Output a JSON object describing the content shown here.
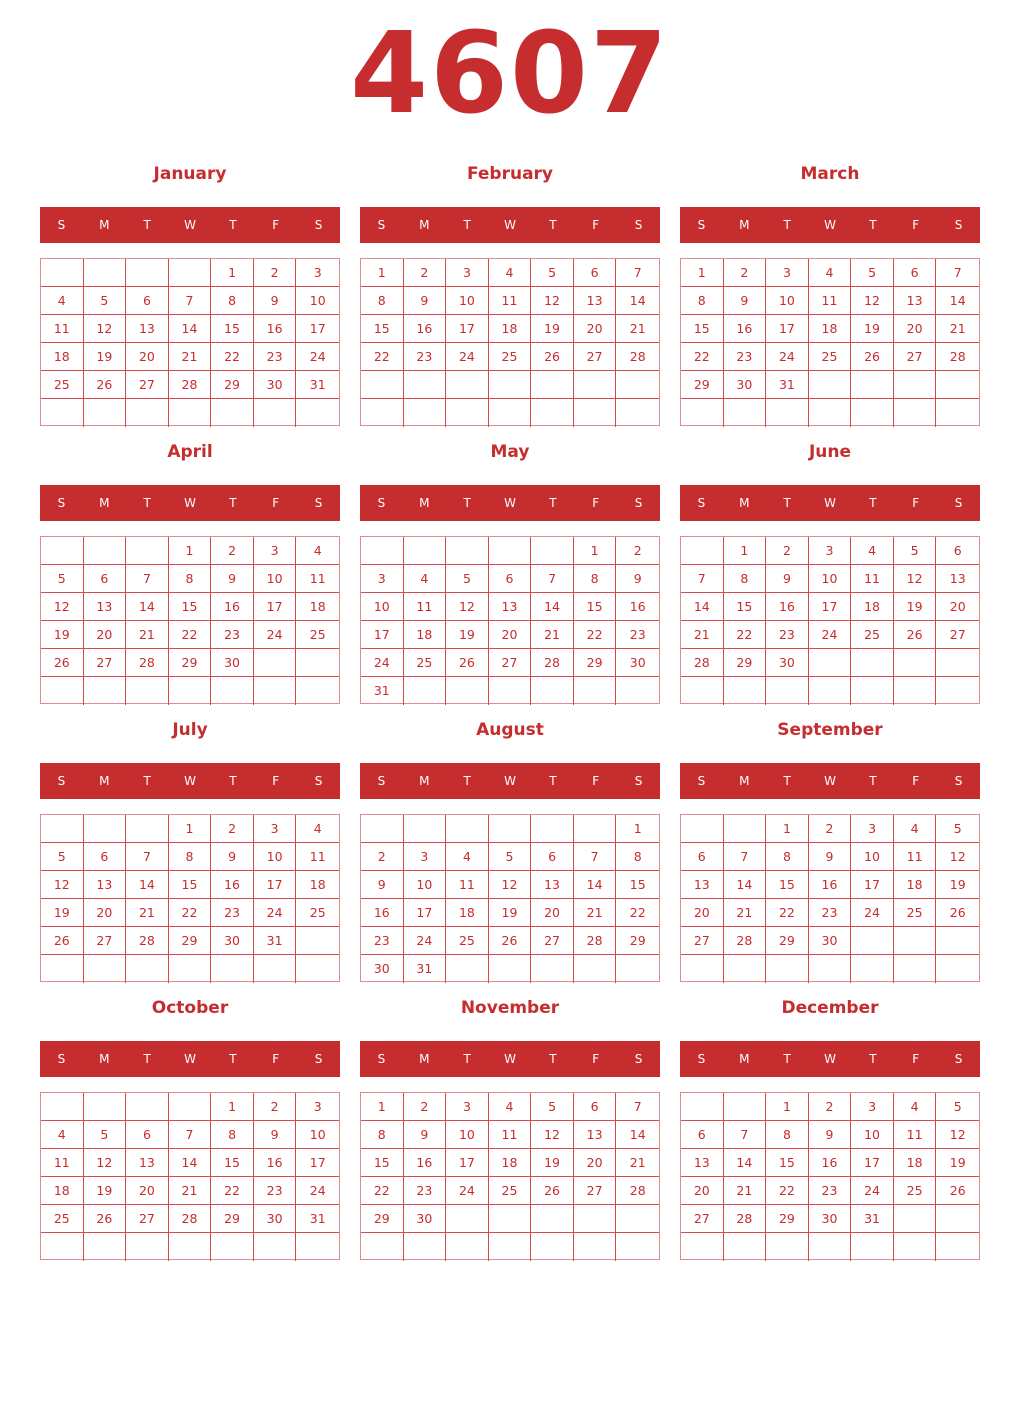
{
  "year": "4607",
  "accent_color": "#c62d2f",
  "weekdays": [
    "S",
    "M",
    "T",
    "W",
    "T",
    "F",
    "S"
  ],
  "months": [
    {
      "name": "January",
      "weeks": [
        [
          "",
          "",
          "",
          "",
          1,
          2,
          3
        ],
        [
          4,
          5,
          6,
          7,
          8,
          9,
          10
        ],
        [
          11,
          12,
          13,
          14,
          15,
          16,
          17
        ],
        [
          18,
          19,
          20,
          21,
          22,
          23,
          24
        ],
        [
          25,
          26,
          27,
          28,
          29,
          30,
          31
        ],
        [
          "",
          "",
          "",
          "",
          "",
          "",
          ""
        ]
      ]
    },
    {
      "name": "February",
      "weeks": [
        [
          1,
          2,
          3,
          4,
          5,
          6,
          7
        ],
        [
          8,
          9,
          10,
          11,
          12,
          13,
          14
        ],
        [
          15,
          16,
          17,
          18,
          19,
          20,
          21
        ],
        [
          22,
          23,
          24,
          25,
          26,
          27,
          28
        ],
        [
          "",
          "",
          "",
          "",
          "",
          "",
          ""
        ],
        [
          "",
          "",
          "",
          "",
          "",
          "",
          ""
        ]
      ]
    },
    {
      "name": "March",
      "weeks": [
        [
          1,
          2,
          3,
          4,
          5,
          6,
          7
        ],
        [
          8,
          9,
          10,
          11,
          12,
          13,
          14
        ],
        [
          15,
          16,
          17,
          18,
          19,
          20,
          21
        ],
        [
          22,
          23,
          24,
          25,
          26,
          27,
          28
        ],
        [
          29,
          30,
          31,
          "",
          "",
          "",
          ""
        ],
        [
          "",
          "",
          "",
          "",
          "",
          "",
          ""
        ]
      ]
    },
    {
      "name": "April",
      "weeks": [
        [
          "",
          "",
          "",
          1,
          2,
          3,
          4
        ],
        [
          5,
          6,
          7,
          8,
          9,
          10,
          11
        ],
        [
          12,
          13,
          14,
          15,
          16,
          17,
          18
        ],
        [
          19,
          20,
          21,
          22,
          23,
          24,
          25
        ],
        [
          26,
          27,
          28,
          29,
          30,
          "",
          ""
        ],
        [
          "",
          "",
          "",
          "",
          "",
          "",
          ""
        ]
      ]
    },
    {
      "name": "May",
      "weeks": [
        [
          "",
          "",
          "",
          "",
          "",
          1,
          2
        ],
        [
          3,
          4,
          5,
          6,
          7,
          8,
          9
        ],
        [
          10,
          11,
          12,
          13,
          14,
          15,
          16
        ],
        [
          17,
          18,
          19,
          20,
          21,
          22,
          23
        ],
        [
          24,
          25,
          26,
          27,
          28,
          29,
          30
        ],
        [
          31,
          "",
          "",
          "",
          "",
          "",
          ""
        ]
      ]
    },
    {
      "name": "June",
      "weeks": [
        [
          "",
          1,
          2,
          3,
          4,
          5,
          6
        ],
        [
          7,
          8,
          9,
          10,
          11,
          12,
          13
        ],
        [
          14,
          15,
          16,
          17,
          18,
          19,
          20
        ],
        [
          21,
          22,
          23,
          24,
          25,
          26,
          27
        ],
        [
          28,
          29,
          30,
          "",
          "",
          "",
          ""
        ],
        [
          "",
          "",
          "",
          "",
          "",
          "",
          ""
        ]
      ]
    },
    {
      "name": "July",
      "weeks": [
        [
          "",
          "",
          "",
          1,
          2,
          3,
          4
        ],
        [
          5,
          6,
          7,
          8,
          9,
          10,
          11
        ],
        [
          12,
          13,
          14,
          15,
          16,
          17,
          18
        ],
        [
          19,
          20,
          21,
          22,
          23,
          24,
          25
        ],
        [
          26,
          27,
          28,
          29,
          30,
          31,
          ""
        ],
        [
          "",
          "",
          "",
          "",
          "",
          "",
          ""
        ]
      ]
    },
    {
      "name": "August",
      "weeks": [
        [
          "",
          "",
          "",
          "",
          "",
          "",
          1
        ],
        [
          2,
          3,
          4,
          5,
          6,
          7,
          8
        ],
        [
          9,
          10,
          11,
          12,
          13,
          14,
          15
        ],
        [
          16,
          17,
          18,
          19,
          20,
          21,
          22
        ],
        [
          23,
          24,
          25,
          26,
          27,
          28,
          29
        ],
        [
          30,
          31,
          "",
          "",
          "",
          "",
          ""
        ]
      ]
    },
    {
      "name": "September",
      "weeks": [
        [
          "",
          "",
          1,
          2,
          3,
          4,
          5
        ],
        [
          6,
          7,
          8,
          9,
          10,
          11,
          12
        ],
        [
          13,
          14,
          15,
          16,
          17,
          18,
          19
        ],
        [
          20,
          21,
          22,
          23,
          24,
          25,
          26
        ],
        [
          27,
          28,
          29,
          30,
          "",
          "",
          ""
        ],
        [
          "",
          "",
          "",
          "",
          "",
          "",
          ""
        ]
      ]
    },
    {
      "name": "October",
      "weeks": [
        [
          "",
          "",
          "",
          "",
          1,
          2,
          3
        ],
        [
          4,
          5,
          6,
          7,
          8,
          9,
          10
        ],
        [
          11,
          12,
          13,
          14,
          15,
          16,
          17
        ],
        [
          18,
          19,
          20,
          21,
          22,
          23,
          24
        ],
        [
          25,
          26,
          27,
          28,
          29,
          30,
          31
        ],
        [
          "",
          "",
          "",
          "",
          "",
          "",
          ""
        ]
      ]
    },
    {
      "name": "November",
      "weeks": [
        [
          1,
          2,
          3,
          4,
          5,
          6,
          7
        ],
        [
          8,
          9,
          10,
          11,
          12,
          13,
          14
        ],
        [
          15,
          16,
          17,
          18,
          19,
          20,
          21
        ],
        [
          22,
          23,
          24,
          25,
          26,
          27,
          28
        ],
        [
          29,
          30,
          "",
          "",
          "",
          "",
          ""
        ],
        [
          "",
          "",
          "",
          "",
          "",
          "",
          ""
        ]
      ]
    },
    {
      "name": "December",
      "weeks": [
        [
          "",
          "",
          1,
          2,
          3,
          4,
          5
        ],
        [
          6,
          7,
          8,
          9,
          10,
          11,
          12
        ],
        [
          13,
          14,
          15,
          16,
          17,
          18,
          19
        ],
        [
          20,
          21,
          22,
          23,
          24,
          25,
          26
        ],
        [
          27,
          28,
          29,
          30,
          31,
          "",
          ""
        ],
        [
          "",
          "",
          "",
          "",
          "",
          "",
          ""
        ]
      ]
    }
  ]
}
